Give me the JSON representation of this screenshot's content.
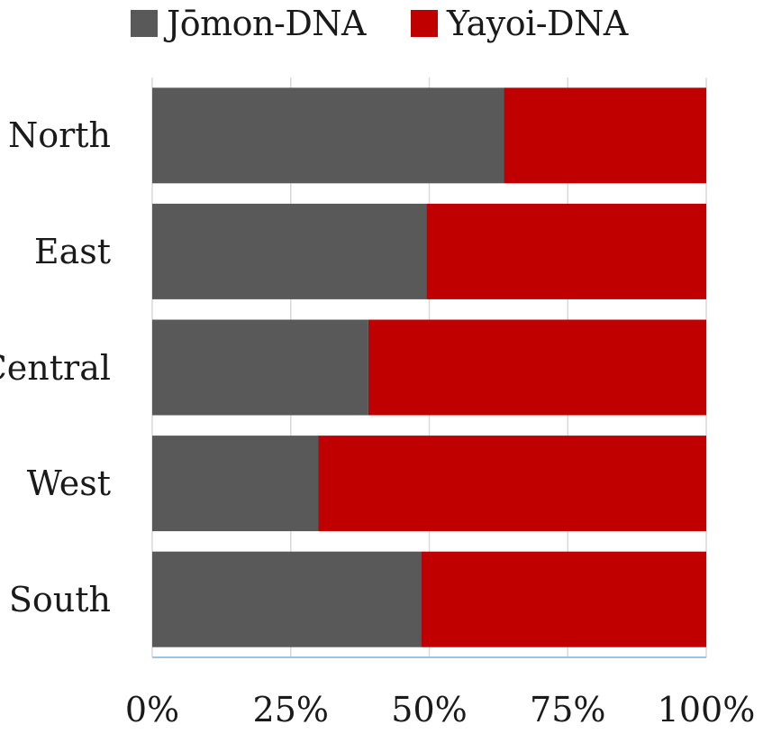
{
  "chart_data": {
    "type": "bar",
    "orientation": "horizontal",
    "stacked": true,
    "percent": true,
    "categories": [
      "North",
      "East",
      "Central",
      "West",
      "South"
    ],
    "series": [
      {
        "name": "Jōmon-DNA",
        "values": [
          63.5,
          49.5,
          39,
          30,
          48.5
        ],
        "color": "#595959"
      },
      {
        "name": "Yayoi-DNA",
        "values": [
          36.5,
          50.5,
          61,
          70,
          51.5
        ],
        "color": "#c00000"
      }
    ],
    "xticks": [
      "0%",
      "25%",
      "50%",
      "75%",
      "100%"
    ],
    "xlim": [
      0,
      100
    ],
    "grid": true,
    "legend_position": "top"
  }
}
